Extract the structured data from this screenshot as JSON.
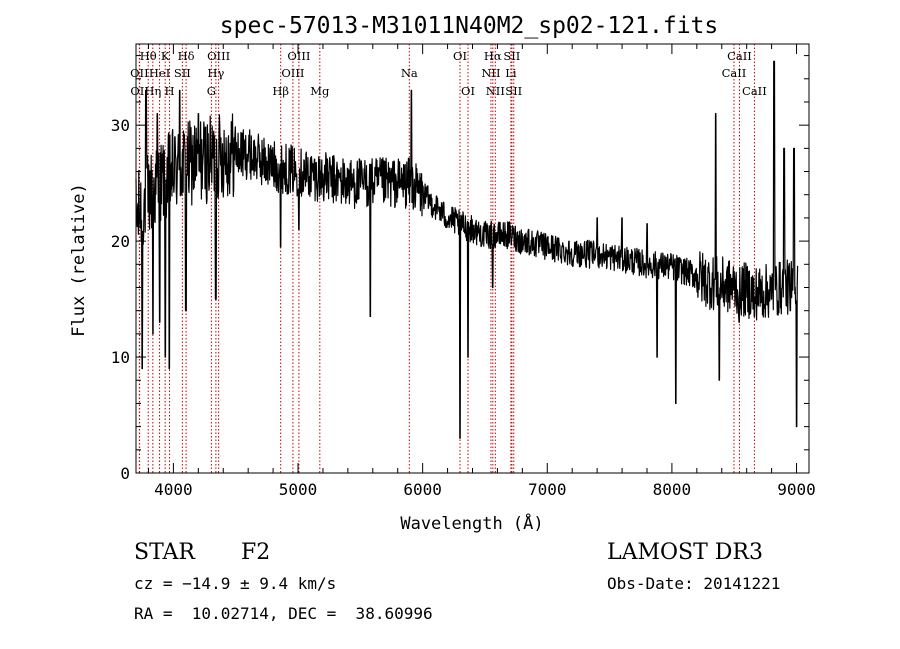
{
  "chart_data": {
    "type": "line",
    "title": "spec-57013-M31011N40M2_sp02-121.fits",
    "xlabel": "Wavelength (Å)",
    "ylabel": "Flux (relative)",
    "xlim": [
      3700,
      9100
    ],
    "ylim": [
      0,
      37
    ],
    "xticks": [
      4000,
      5000,
      6000,
      7000,
      8000,
      9000
    ],
    "yticks": [
      0,
      10,
      20,
      30
    ],
    "continuum": [
      [
        3700,
        22
      ],
      [
        3800,
        24
      ],
      [
        3900,
        25
      ],
      [
        4000,
        26
      ],
      [
        4100,
        26.5
      ],
      [
        4200,
        27
      ],
      [
        4300,
        27
      ],
      [
        4400,
        27.5
      ],
      [
        4500,
        27.5
      ],
      [
        4600,
        27.5
      ],
      [
        4700,
        27
      ],
      [
        4800,
        26.5
      ],
      [
        5000,
        26
      ],
      [
        5200,
        25.5
      ],
      [
        5400,
        25
      ],
      [
        5600,
        25
      ],
      [
        5800,
        25
      ],
      [
        5900,
        25
      ],
      [
        6000,
        24
      ],
      [
        6100,
        23
      ],
      [
        6200,
        22
      ],
      [
        6300,
        21.5
      ],
      [
        6400,
        21
      ],
      [
        6500,
        20.5
      ],
      [
        6600,
        20.5
      ],
      [
        6700,
        20.5
      ],
      [
        6800,
        20
      ],
      [
        7000,
        19.5
      ],
      [
        7200,
        19
      ],
      [
        7400,
        18.8
      ],
      [
        7600,
        18.5
      ],
      [
        7800,
        18
      ],
      [
        8000,
        17.8
      ],
      [
        8200,
        17
      ],
      [
        8300,
        16.5
      ],
      [
        8500,
        16
      ],
      [
        8700,
        15.5
      ],
      [
        8900,
        16
      ],
      [
        9000,
        16
      ]
    ],
    "absorption_dips": [
      [
        3750,
        9
      ],
      [
        3835,
        12
      ],
      [
        3890,
        13
      ],
      [
        3934,
        10
      ],
      [
        3968,
        9
      ],
      [
        4100,
        14
      ],
      [
        4340,
        15
      ],
      [
        4861,
        19.5
      ],
      [
        5008,
        21
      ],
      [
        5580,
        13.5
      ],
      [
        6300,
        3
      ],
      [
        6365,
        10
      ],
      [
        6563,
        16
      ],
      [
        7880,
        10
      ],
      [
        8030,
        6
      ],
      [
        8380,
        8
      ],
      [
        8540,
        13
      ],
      [
        8662,
        13.5
      ],
      [
        8800,
        15
      ],
      [
        8950,
        14
      ],
      [
        9000,
        4
      ]
    ],
    "emission_spikes": [
      [
        3780,
        33
      ],
      [
        3870,
        31
      ],
      [
        4050,
        33
      ],
      [
        4200,
        31
      ],
      [
        5910,
        33
      ],
      [
        6850,
        21
      ],
      [
        7400,
        22
      ],
      [
        7600,
        22
      ],
      [
        7800,
        21.5
      ],
      [
        8350,
        31
      ],
      [
        8820,
        35.5
      ],
      [
        8900,
        28
      ],
      [
        8980,
        28
      ]
    ],
    "spectral_lines": [
      {
        "label": "Hθ",
        "wavelength": 3798,
        "row": 1
      },
      {
        "label": "OII",
        "wavelength": 3727,
        "row": 2
      },
      {
        "label": "OII",
        "wavelength": 3729,
        "row": 3
      },
      {
        "label": "Hη",
        "wavelength": 3835,
        "row": 3
      },
      {
        "label": "HeI",
        "wavelength": 3889,
        "row": 2
      },
      {
        "label": "K",
        "wavelength": 3934,
        "row": 1
      },
      {
        "label": "H",
        "wavelength": 3969,
        "row": 3
      },
      {
        "label": "SII",
        "wavelength": 4072,
        "row": 2
      },
      {
        "label": "Hδ",
        "wavelength": 4102,
        "row": 1
      },
      {
        "label": "G",
        "wavelength": 4305,
        "row": 3
      },
      {
        "label": "Hγ",
        "wavelength": 4341,
        "row": 2
      },
      {
        "label": "OIII",
        "wavelength": 4363,
        "row": 1
      },
      {
        "label": "Hβ",
        "wavelength": 4861,
        "row": 3
      },
      {
        "label": "OIII",
        "wavelength": 4959,
        "row": 2
      },
      {
        "label": "OIII",
        "wavelength": 5007,
        "row": 1
      },
      {
        "label": "Mg",
        "wavelength": 5175,
        "row": 3
      },
      {
        "label": "Na",
        "wavelength": 5893,
        "row": 2
      },
      {
        "label": "OI",
        "wavelength": 6300,
        "row": 1
      },
      {
        "label": "OI",
        "wavelength": 6364,
        "row": 3
      },
      {
        "label": "NII",
        "wavelength": 6548,
        "row": 2
      },
      {
        "label": "Hα",
        "wavelength": 6563,
        "row": 1
      },
      {
        "label": "NII",
        "wavelength": 6583,
        "row": 3
      },
      {
        "label": "Li",
        "wavelength": 6708,
        "row": 2
      },
      {
        "label": "SII",
        "wavelength": 6716,
        "row": 1
      },
      {
        "label": "SII",
        "wavelength": 6731,
        "row": 3
      },
      {
        "label": "CaII",
        "wavelength": 8498,
        "row": 2
      },
      {
        "label": "CaII",
        "wavelength": 8542,
        "row": 1
      },
      {
        "label": "CaII",
        "wavelength": 8662,
        "row": 3
      }
    ]
  },
  "info": {
    "object_type": "STAR",
    "subclass": "F2",
    "survey": "LAMOST DR3",
    "redshift": "cz = −14.9 ± 9.4 km/s",
    "obs_date": "Obs-Date: 20141221",
    "coords": "RA =  10.02714, DEC =  38.60996"
  },
  "colors": {
    "spectrum": "#000000",
    "line_markers": "#cc0000",
    "axes": "#000000",
    "background": "#ffffff"
  }
}
